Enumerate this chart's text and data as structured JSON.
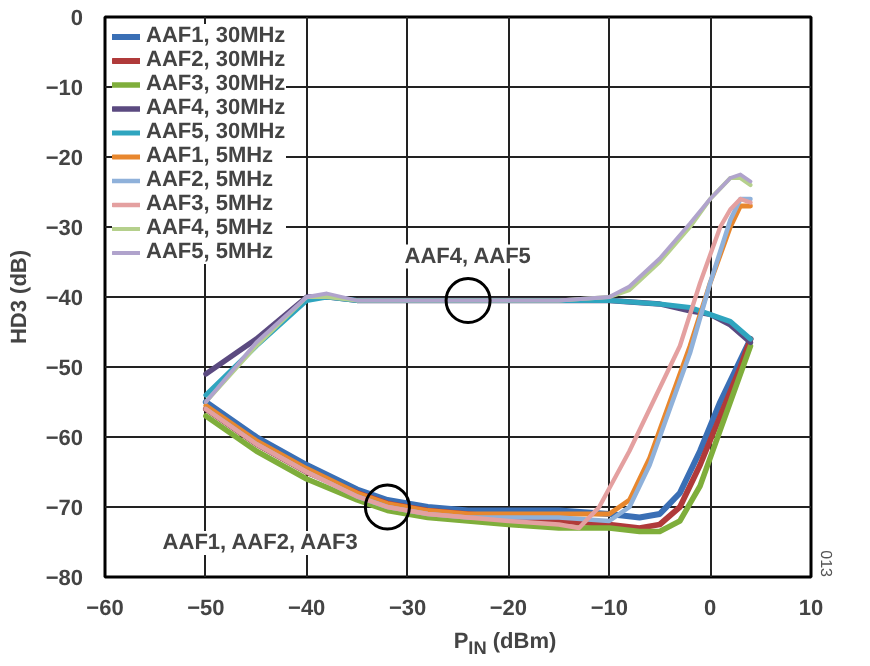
{
  "chart_data": {
    "type": "line",
    "xlabel": "P$_{IN}$ (dBm)",
    "ylabel": "HD3 (dB)",
    "xlim": [
      -60,
      10
    ],
    "xticks": [
      -60,
      -50,
      -40,
      -30,
      -20,
      -10,
      0,
      10
    ],
    "ylim": [
      -80,
      0
    ],
    "yticks": [
      -80,
      -70,
      -60,
      -50,
      -40,
      -30,
      -20,
      -10,
      0
    ],
    "grid": true,
    "legend": "top left",
    "line_style": "solid",
    "marker": "none",
    "annotations": [
      {
        "text": "AAF4, AAF5",
        "x": -24,
        "y": -40.5
      },
      {
        "text": "AAF1, AAF2, AAF3",
        "x": -32,
        "y": -70
      },
      "013"
    ],
    "series": [
      {
        "name": "AAF1, 30MHz",
        "color": "#3a6fb5",
        "x": [
          -50,
          -45,
          -40,
          -35,
          -32,
          -28,
          -24,
          -20,
          -15,
          -10,
          -7,
          -5,
          -3,
          -1,
          1,
          3,
          4
        ],
        "values": [
          -55,
          -60,
          -64,
          -67.5,
          -69,
          -70,
          -70.5,
          -70.5,
          -70.5,
          -71,
          -71.5,
          -71,
          -68,
          -62,
          -55,
          -49,
          -46
        ]
      },
      {
        "name": "AAF2, 30MHz",
        "color": "#b03a3a",
        "x": [
          -50,
          -45,
          -40,
          -35,
          -32,
          -28,
          -24,
          -20,
          -15,
          -10,
          -7,
          -5,
          -3,
          -1,
          1,
          3,
          4
        ],
        "values": [
          -56,
          -61,
          -65,
          -68,
          -69.5,
          -70.5,
          -71,
          -71.5,
          -72,
          -72.5,
          -73,
          -72.5,
          -70,
          -64,
          -57,
          -50,
          -46
        ]
      },
      {
        "name": "AAF3, 30MHz",
        "color": "#7fae3b",
        "x": [
          -50,
          -45,
          -40,
          -35,
          -32,
          -28,
          -24,
          -20,
          -15,
          -10,
          -7,
          -5,
          -3,
          -1,
          1,
          3,
          4
        ],
        "values": [
          -57,
          -62,
          -66,
          -69,
          -70.5,
          -71.5,
          -72,
          -72.5,
          -73,
          -73,
          -73.5,
          -73.5,
          -72,
          -67,
          -59,
          -51,
          -47
        ]
      },
      {
        "name": "AAF4, 30MHz",
        "color": "#5b4a80",
        "x": [
          -50,
          -45,
          -40,
          -38,
          -35,
          -30,
          -25,
          -20,
          -15,
          -10,
          -5,
          -2,
          0,
          2,
          4
        ],
        "values": [
          -51,
          -46,
          -40,
          -40,
          -40.5,
          -40.5,
          -40.5,
          -40.5,
          -40.5,
          -40.5,
          -41,
          -42,
          -42.5,
          -44,
          -46.5
        ]
      },
      {
        "name": "AAF5, 30MHz",
        "color": "#2fa5bf",
        "x": [
          -50,
          -45,
          -40,
          -38,
          -35,
          -30,
          -25,
          -20,
          -15,
          -10,
          -5,
          -2,
          0,
          2,
          4
        ],
        "values": [
          -54,
          -47,
          -40.5,
          -40,
          -40.5,
          -40.5,
          -40.5,
          -40.5,
          -40.5,
          -40.5,
          -41,
          -41.5,
          -42.5,
          -43.5,
          -46
        ]
      },
      {
        "name": "AAF1, 5MHz",
        "color": "#e8872e",
        "x": [
          -50,
          -45,
          -40,
          -35,
          -32,
          -28,
          -24,
          -20,
          -15,
          -10,
          -8,
          -6,
          -4,
          -2,
          0,
          2,
          3,
          4
        ],
        "values": [
          -55.5,
          -60.5,
          -64.5,
          -68,
          -69.5,
          -70.5,
          -71,
          -71,
          -71,
          -71,
          -69,
          -63,
          -55,
          -47,
          -38,
          -30,
          -27,
          -27
        ]
      },
      {
        "name": "AAF2, 5MHz",
        "color": "#8fb1da",
        "x": [
          -50,
          -45,
          -40,
          -35,
          -32,
          -28,
          -24,
          -20,
          -15,
          -10,
          -8,
          -6,
          -4,
          -2,
          0,
          2,
          3,
          4
        ],
        "values": [
          -56,
          -61,
          -65,
          -68.5,
          -70,
          -71,
          -71.5,
          -71.5,
          -71.5,
          -72,
          -70,
          -64,
          -56,
          -48,
          -38,
          -29,
          -26,
          -26
        ]
      },
      {
        "name": "AAF3, 5MHz",
        "color": "#e4a0a0",
        "x": [
          -50,
          -45,
          -40,
          -35,
          -32,
          -28,
          -24,
          -20,
          -15,
          -13,
          -11,
          -8,
          -5,
          -3,
          -1,
          1,
          2,
          3,
          4
        ],
        "values": [
          -56,
          -61,
          -65,
          -68.5,
          -70,
          -71,
          -71.5,
          -72,
          -72.5,
          -73,
          -70,
          -62,
          -53,
          -47,
          -38,
          -30,
          -27.5,
          -26,
          -26.5
        ]
      },
      {
        "name": "AAF4, 5MHz",
        "color": "#b5d08c",
        "x": [
          -50,
          -45,
          -40,
          -38,
          -35,
          -30,
          -25,
          -20,
          -15,
          -10,
          -8,
          -5,
          -2,
          0,
          2,
          3,
          4
        ],
        "values": [
          -55,
          -47,
          -40,
          -40,
          -40.5,
          -40.5,
          -40.5,
          -40.5,
          -40.5,
          -40,
          -39,
          -35,
          -30,
          -26,
          -23,
          -23,
          -24
        ]
      },
      {
        "name": "AAF5, 5MHz",
        "color": "#b0a3cc",
        "x": [
          -50,
          -45,
          -40,
          -38,
          -35,
          -30,
          -25,
          -20,
          -15,
          -10,
          -8,
          -5,
          -2,
          0,
          2,
          3,
          4
        ],
        "values": [
          -55,
          -46.5,
          -40,
          -39.5,
          -40.5,
          -40.5,
          -40.5,
          -40.5,
          -40.5,
          -40,
          -38.5,
          -34.5,
          -29.5,
          -26,
          -23,
          -22.5,
          -23.5
        ]
      }
    ]
  }
}
